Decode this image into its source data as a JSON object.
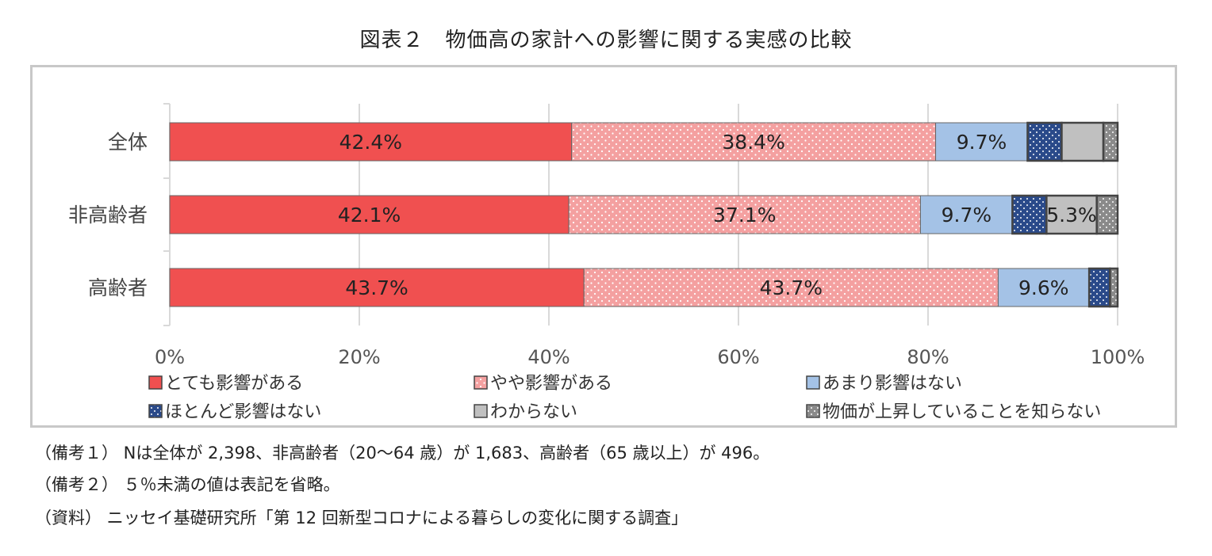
{
  "title": "図表２　物価高の家計への影響に関する実感の比較",
  "chart_data": {
    "type": "bar",
    "orientation": "horizontal",
    "stacked": true,
    "categories": [
      "全体",
      "非高齢者",
      "高齢者"
    ],
    "series": [
      {
        "name": "とても影響がある",
        "values": [
          42.4,
          42.1,
          43.7
        ],
        "color": "#f05050",
        "pattern": "solid"
      },
      {
        "name": "やや影響がある",
        "values": [
          38.4,
          37.1,
          43.7
        ],
        "color": "#f4a0a0",
        "pattern": "white-dots"
      },
      {
        "name": "あまり影響はない",
        "values": [
          9.7,
          9.7,
          9.6
        ],
        "color": "#a4c2e6",
        "pattern": "solid"
      },
      {
        "name": "ほとんど影響はない",
        "values": [
          3.6,
          3.6,
          2.2
        ],
        "color": "#2a4a8a",
        "pattern": "white-dots"
      },
      {
        "name": "わからない",
        "values": [
          4.4,
          5.3,
          0.0
        ],
        "color": "#c0c0c0",
        "pattern": "solid"
      },
      {
        "name": "物価が上昇していることを知らない",
        "values": [
          1.5,
          2.2,
          0.8
        ],
        "color": "#8a8a8a",
        "pattern": "white-dots"
      }
    ],
    "data_labels": [
      [
        "42.4%",
        "38.4%",
        "9.7%",
        "",
        "",
        ""
      ],
      [
        "42.1%",
        "37.1%",
        "9.7%",
        "",
        "5.3%",
        ""
      ],
      [
        "43.7%",
        "43.7%",
        "9.6%",
        "",
        "",
        ""
      ]
    ],
    "xlim": [
      0,
      100
    ],
    "xticks": [
      "0%",
      "20%",
      "40%",
      "60%",
      "80%",
      "100%"
    ],
    "grid": true,
    "legend_position": "bottom"
  },
  "notes": [
    "（備考１） Nは全体が 2,398、非高齢者（20～64 歳）が 1,683、高齢者（65 歳以上）が 496。",
    "（備考２） ５％未満の値は表記を省略。",
    "（資料） ニッセイ基礎研究所「第 12 回新型コロナによる暮らしの変化に関する調査」"
  ]
}
